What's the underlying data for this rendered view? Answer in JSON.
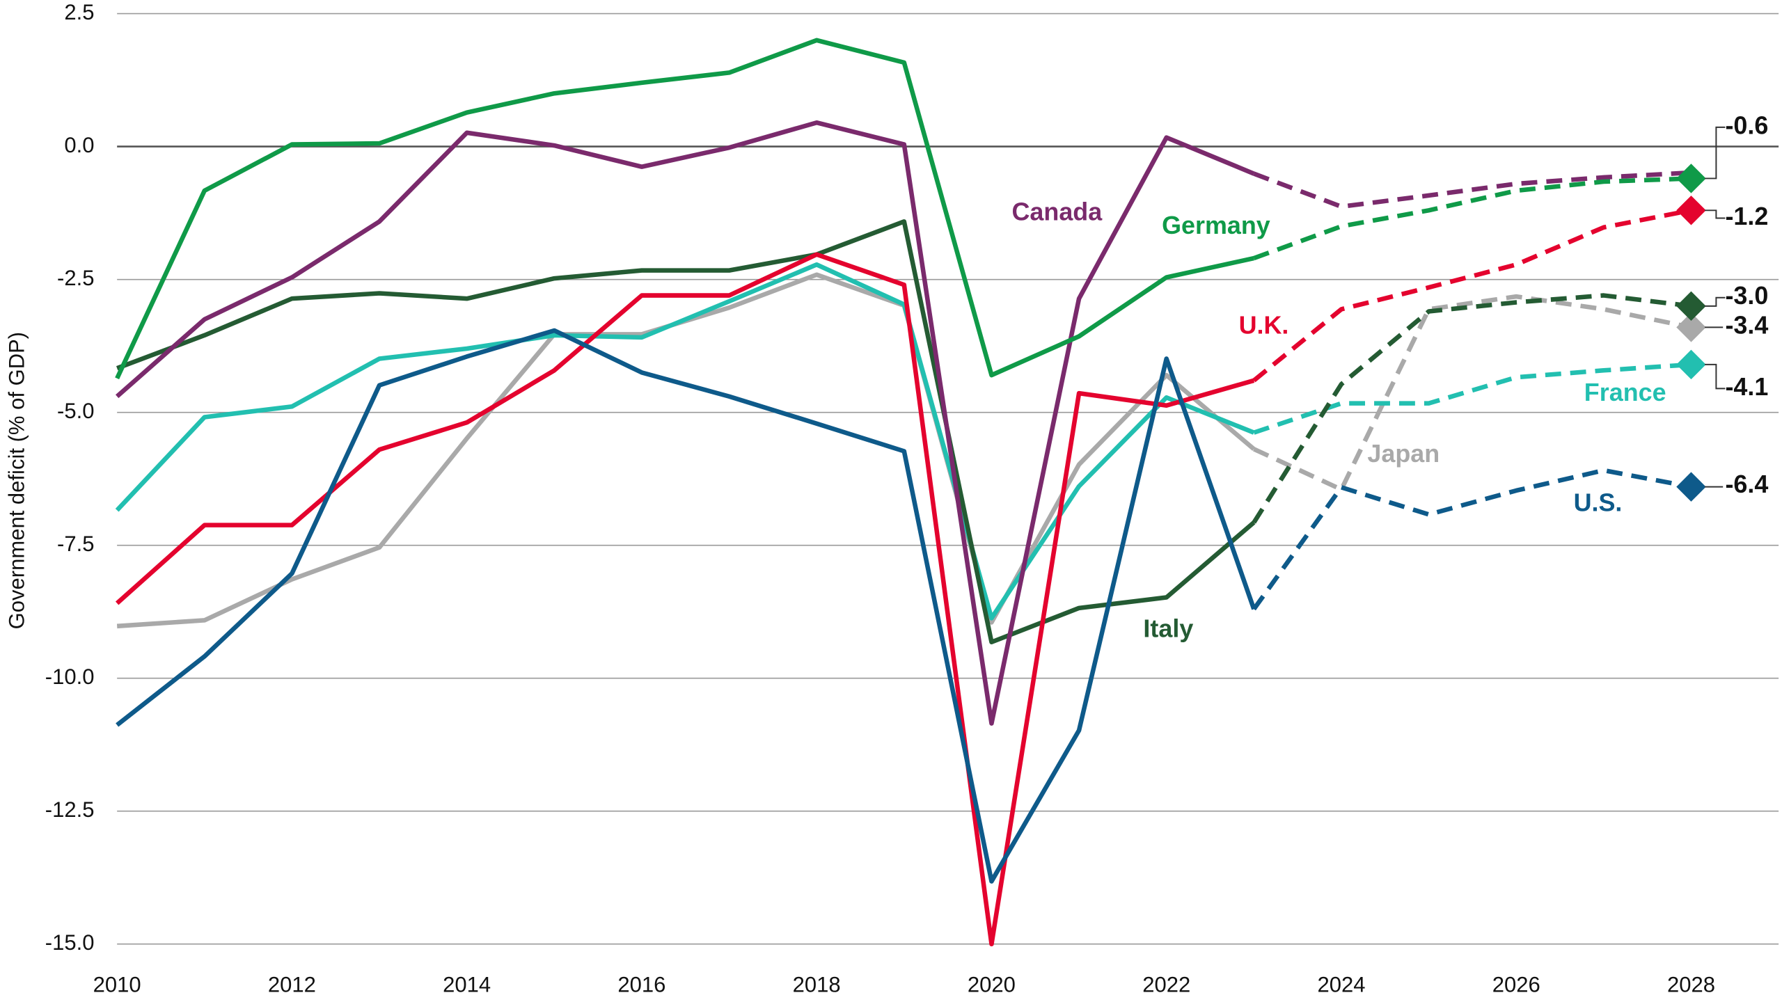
{
  "chart_data": {
    "type": "line",
    "y_label": "Government deficit (% of GDP)",
    "x": [
      2010,
      2011,
      2012,
      2013,
      2014,
      2015,
      2016,
      2017,
      2018,
      2019,
      2020,
      2021,
      2022,
      2023,
      2024,
      2025,
      2026,
      2027,
      2028
    ],
    "xlim": [
      2010,
      2029
    ],
    "xticks": [
      2010,
      2012,
      2014,
      2016,
      2018,
      2020,
      2022,
      2024,
      2026,
      2028
    ],
    "ylim": [
      -15,
      2.5
    ],
    "yticks": [
      2.5,
      {
        "value": 0,
        "label": "0.0"
      },
      -2.5,
      {
        "value": -5,
        "label": "-5.0"
      },
      -7.5,
      {
        "value": -10,
        "label": "-10.0"
      },
      -12.5,
      {
        "value": -15,
        "label": "-15.0"
      }
    ],
    "grid": true,
    "forecast_from": 2023,
    "series": [
      {
        "name": "Japan",
        "color": "#a9a9a9",
        "values": [
          -9.02,
          -8.91,
          -8.14,
          -7.54,
          -5.49,
          -3.53,
          -3.53,
          -3.03,
          -2.41,
          -2.99,
          -8.95,
          -5.98,
          -4.3,
          -5.69,
          -6.45,
          -3.06,
          -2.82,
          -3.06,
          -3.4
        ],
        "value_labels": [
          null,
          null,
          null,
          null,
          null,
          null,
          null,
          null,
          null,
          null,
          null,
          null,
          null,
          null,
          null,
          null,
          null,
          null,
          "-3.4"
        ]
      },
      {
        "name": "France",
        "color": "#22bfb0",
        "values": [
          -6.84,
          -5.09,
          -4.89,
          -3.99,
          -3.8,
          -3.55,
          -3.59,
          -2.91,
          -2.22,
          -2.97,
          -8.87,
          -6.39,
          -4.72,
          -5.38,
          -4.83,
          -4.83,
          -4.34,
          -4.21,
          -4.1
        ],
        "value_labels": [
          null,
          null,
          null,
          null,
          null,
          null,
          null,
          null,
          null,
          null,
          null,
          null,
          null,
          null,
          null,
          null,
          null,
          null,
          "-4.1"
        ]
      },
      {
        "name": "Italy",
        "color": "#245b33",
        "values": [
          -4.17,
          -3.55,
          -2.86,
          -2.76,
          -2.86,
          -2.48,
          -2.33,
          -2.33,
          -2.03,
          -1.41,
          -9.32,
          -8.68,
          -8.48,
          -7.07,
          -4.47,
          -3.1,
          -2.93,
          -2.8,
          -3.0
        ],
        "value_labels": [
          null,
          null,
          null,
          null,
          null,
          null,
          null,
          null,
          null,
          null,
          null,
          null,
          null,
          null,
          null,
          null,
          null,
          null,
          "-3.0"
        ]
      },
      {
        "name": "Canada",
        "color": "#7a2a6c",
        "values": [
          -4.7,
          -3.25,
          -2.46,
          -1.41,
          0.26,
          0.02,
          -0.38,
          -0.02,
          0.45,
          0.04,
          -10.85,
          -2.86,
          0.17,
          -0.51,
          -1.13,
          -0.92,
          -0.7,
          -0.58,
          -0.49
        ],
        "value_labels": [
          null,
          null,
          null,
          null,
          null,
          null,
          null,
          null,
          null,
          null,
          null,
          null,
          null,
          null,
          null,
          null,
          null,
          null,
          null
        ]
      },
      {
        "name": "U.K.",
        "color": "#e4032e",
        "values": [
          -8.59,
          -7.12,
          -7.12,
          -5.7,
          -5.19,
          -4.21,
          -2.8,
          -2.8,
          -2.03,
          -2.6,
          -15.0,
          -4.64,
          -4.87,
          -4.4,
          -3.06,
          -2.65,
          -2.22,
          -1.52,
          -1.2
        ],
        "value_labels": [
          null,
          null,
          null,
          null,
          null,
          null,
          null,
          null,
          null,
          null,
          null,
          null,
          null,
          null,
          null,
          null,
          null,
          null,
          "-1.2"
        ]
      },
      {
        "name": "U.S.",
        "color": "#0e5a8a",
        "values": [
          -10.88,
          -9.59,
          -8.03,
          -4.49,
          -3.95,
          -3.46,
          -4.25,
          -4.7,
          -5.21,
          -5.73,
          -13.82,
          -10.98,
          -3.99,
          -8.7,
          -6.41,
          -6.92,
          -6.47,
          -6.09,
          -6.4
        ],
        "value_labels": [
          null,
          null,
          null,
          null,
          null,
          null,
          null,
          null,
          null,
          null,
          null,
          null,
          null,
          null,
          null,
          null,
          null,
          null,
          "-6.4"
        ]
      },
      {
        "name": "Germany",
        "color": "#0f9a48",
        "values": [
          -4.36,
          -0.83,
          0.04,
          0.06,
          0.64,
          1.0,
          1.2,
          1.39,
          2.0,
          1.58,
          -4.3,
          -3.57,
          -2.46,
          -2.1,
          -1.5,
          -1.2,
          -0.83,
          -0.66,
          -0.6
        ],
        "value_labels": [
          null,
          null,
          null,
          null,
          null,
          null,
          null,
          null,
          null,
          null,
          null,
          null,
          null,
          null,
          null,
          null,
          null,
          null,
          "-0.6"
        ]
      }
    ]
  }
}
